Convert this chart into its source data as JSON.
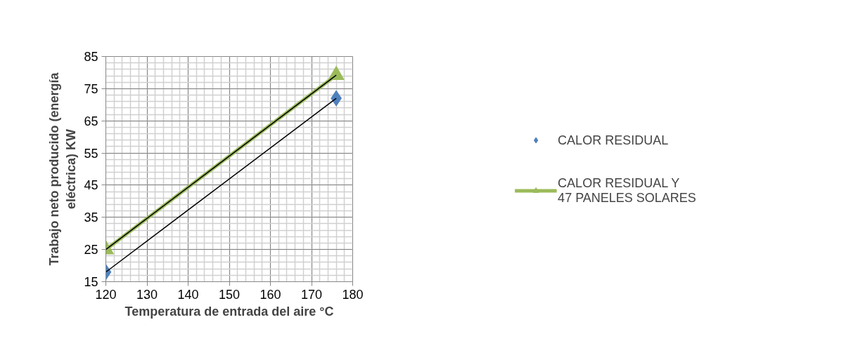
{
  "chart_data": {
    "type": "line",
    "xlabel": "Temperatura de entrada del aire °C",
    "ylabel": "Trabajo neto producido (energía eléctrica) KW",
    "xlim": [
      120,
      180
    ],
    "xticks": [
      120,
      130,
      140,
      150,
      160,
      170,
      180
    ],
    "ylim": [
      15,
      85
    ],
    "yticks": [
      15,
      25,
      35,
      45,
      55,
      65,
      75,
      85
    ],
    "grid": true,
    "legend": "right",
    "x": [
      120,
      176
    ],
    "series": [
      {
        "name": "CALOR RESIDUAL",
        "type": "scatter",
        "color": "#4f81bd",
        "values": [
          18,
          72
        ],
        "marker": "diamond"
      },
      {
        "name": "CALOR RESIDUAL Y 47 PANELES SOLARES",
        "color": "#9bbb59",
        "values": [
          25,
          79.2
        ],
        "marker": "triangle"
      },
      {
        "type": "line",
        "color": "#000000",
        "values": [
          18,
          72
        ],
        "marker": "none"
      },
      {
        "type": "line",
        "color": "#000000",
        "values": [
          25,
          79.2
        ],
        "marker": "none"
      }
    ]
  }
}
